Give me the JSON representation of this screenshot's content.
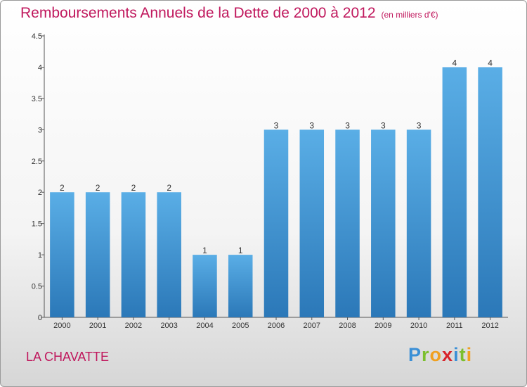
{
  "chart_data": {
    "type": "bar",
    "title": "Remboursements Annuels de la Dette de 2000 à 2012",
    "subtitle": "(en milliers d'€)",
    "categories": [
      "2000",
      "2001",
      "2002",
      "2003",
      "2004",
      "2005",
      "2006",
      "2007",
      "2008",
      "2009",
      "2010",
      "2011",
      "2012"
    ],
    "values": [
      2,
      2,
      2,
      2,
      1,
      1,
      3,
      3,
      3,
      3,
      3,
      4,
      4
    ],
    "data_labels": [
      "2",
      "2",
      "2",
      "2",
      "1",
      "1",
      "3",
      "3",
      "3",
      "3",
      "3",
      "4",
      "4"
    ],
    "ylim": [
      0,
      4.5
    ],
    "yticks": [
      0,
      0.5,
      1,
      1.5,
      2,
      2.5,
      3,
      3.5,
      4,
      4.5
    ],
    "ytick_labels": [
      "0",
      "0.5",
      "1",
      "1.5",
      "2",
      "2.5",
      "3",
      "3.5",
      "4",
      "4.5"
    ],
    "grid": false,
    "bar_color_top": "#5aaee6",
    "bar_color_bottom": "#2b78b8"
  },
  "commune": "LA CHAVATTE",
  "logo": {
    "letters": [
      "P",
      "r",
      "o",
      "x",
      "i",
      "t",
      "i"
    ],
    "colors": [
      "#3a8fd6",
      "#7bbf2e",
      "#f0a020",
      "#d8232a",
      "#3a8fd6",
      "#7bbf2e",
      "#f0a020"
    ]
  }
}
